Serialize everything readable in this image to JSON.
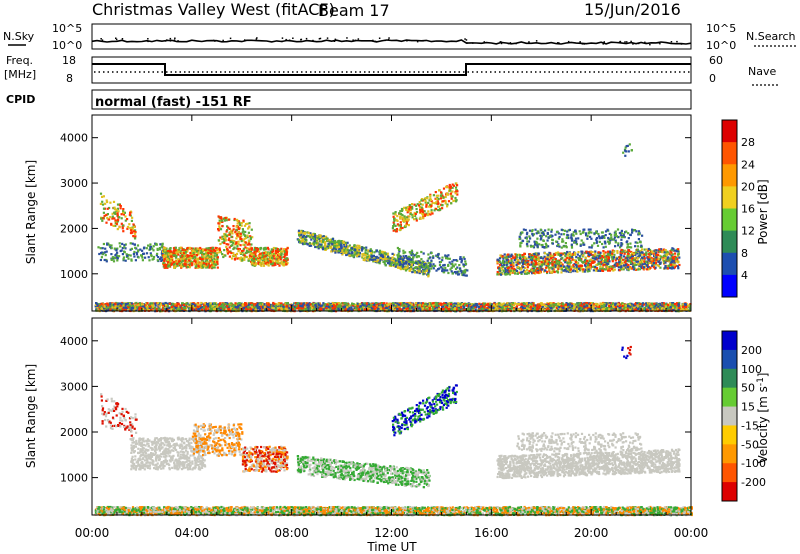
{
  "header": {
    "title": "Christmas Valley West (fitACF)",
    "beam": "Beam 17",
    "date": "15/Jun/2016"
  },
  "side_labels": {
    "nsky": "N.Sky",
    "nsearch": "N.Search",
    "freq": "Freq.",
    "freq_unit": "[MHz]",
    "nave": "Nave",
    "cpid": "CPID",
    "cpid_value": "normal (fast) -151 RF"
  },
  "noise_panel": {
    "ticks": [
      "10^5",
      "10^0"
    ]
  },
  "freq_panel": {
    "left_ticks": [
      "18",
      "8"
    ],
    "right_ticks": [
      "60",
      "0"
    ]
  },
  "time_axis": {
    "label": "Time UT",
    "ticks": [
      "00:00",
      "04:00",
      "08:00",
      "12:00",
      "16:00",
      "20:00",
      "00:00"
    ]
  },
  "chart_data": [
    {
      "type": "heatmap",
      "name": "power",
      "ylabel": "Slant Range [km]",
      "xlabel": "Time UT",
      "xlim": [
        0,
        24
      ],
      "ylim": [
        180,
        4500
      ],
      "yticks": [
        "1000",
        "2000",
        "3000",
        "4000"
      ],
      "colorbar": {
        "label": "Power [dB]",
        "ticks": [
          "4",
          "8",
          "12",
          "16",
          "20",
          "24",
          "28"
        ],
        "colors": [
          "#0000ff",
          "#1d4fb0",
          "#2e8b57",
          "#66cc33",
          "#f0d020",
          "#ff9900",
          "#ff5500",
          "#dd0000"
        ]
      },
      "colors": {
        "low": "#2a4fa0",
        "mid": "#5aaa3a",
        "high": "#e0c020",
        "strong": "#ff3300"
      }
    },
    {
      "type": "heatmap",
      "name": "velocity",
      "ylabel": "Slant Range [km]",
      "xlabel": "Time UT",
      "xlim": [
        0,
        24
      ],
      "ylim": [
        180,
        4500
      ],
      "yticks": [
        "1000",
        "2000",
        "3000",
        "4000"
      ],
      "colorbar": {
        "label": "Velocity [m s",
        "label_sup": "-1",
        "label_end": "]",
        "ticks": [
          "200",
          "100",
          "50",
          "15",
          "-15",
          "-50",
          "-100",
          "-200"
        ],
        "colors": [
          "#0000cc",
          "#1a4fb0",
          "#2e8b57",
          "#66cc33",
          "#c8c8c0",
          "#ffcc00",
          "#ff9900",
          "#ff5500",
          "#dd0000"
        ]
      },
      "colors": {
        "ground": "#c8c8c0",
        "blue": "#0000cc",
        "green": "#33aa33",
        "orange": "#ff8800",
        "red": "#dd1100"
      }
    }
  ]
}
